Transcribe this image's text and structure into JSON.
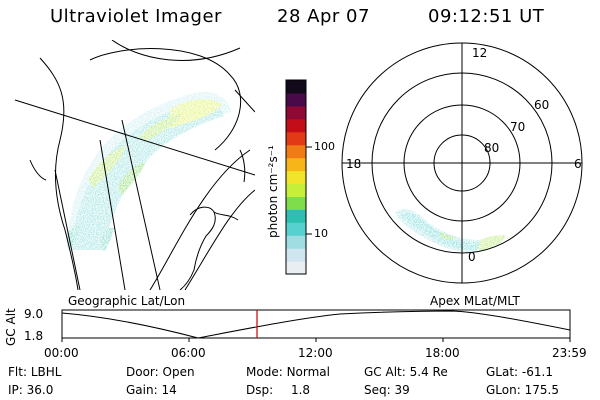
{
  "header": {
    "instrument": "Ultraviolet Imager",
    "date": "28 Apr 07",
    "time": "09:12:51 UT"
  },
  "colorbar": {
    "unit": "photon cm⁻²s⁻¹",
    "ticks": [
      "100",
      "10"
    ],
    "colors": [
      "#e8eef2",
      "#cfe6ee",
      "#9fdde3",
      "#57d0d0",
      "#2fbfb0",
      "#7fdc4a",
      "#c6ef3a",
      "#f1e42a",
      "#f7b51a",
      "#f07c16",
      "#e23a16",
      "#c30e1a",
      "#8e0a34",
      "#4a0a4a",
      "#120a1a"
    ]
  },
  "polar": {
    "mlt_labels": [
      "12",
      "18",
      "6",
      "0"
    ],
    "lat_labels": [
      "60",
      "70",
      "80"
    ]
  },
  "map_labels": {
    "geo": "Geographic Lat/Lon",
    "apex": "Apex MLat/MLT"
  },
  "timeline": {
    "ylabel": "GC Alt",
    "y_ticks": [
      "9.0",
      "1.8"
    ],
    "x_ticks": [
      "00:00",
      "06:00",
      "12:00",
      "18:00",
      "23:59"
    ],
    "marker_time": "09:12:51",
    "marker_color": "#cc0000"
  },
  "status": {
    "row1": [
      {
        "key": "Flt:",
        "val": "LBHL"
      },
      {
        "key": "Door:",
        "val": "Open"
      },
      {
        "key": "Mode:",
        "val": "Normal"
      },
      {
        "key": "GC Alt:",
        "val": "5.4 Re"
      },
      {
        "key": "GLat:",
        "val": "-61.1"
      }
    ],
    "row2": [
      {
        "key": "IP:",
        "val": "36.0"
      },
      {
        "key": "Gain:",
        "val": "14"
      },
      {
        "key": "Dsp:",
        "val": "1.8"
      },
      {
        "key": "Seq:",
        "val": "39"
      },
      {
        "key": "GLon:",
        "val": "175.5"
      }
    ]
  }
}
